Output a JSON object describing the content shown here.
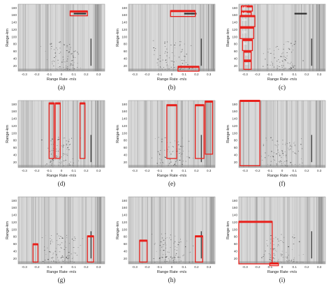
{
  "figure": {
    "x_axis_title": "Range Rate -m/s",
    "y_axis_title": "Range-km",
    "x_ticks": [
      "-0.3",
      "-0.2",
      "-0.1",
      "0",
      "0.1",
      "0.2",
      "0.3"
    ],
    "y_ticks": [
      "20",
      "40",
      "60",
      "80",
      "100",
      "120",
      "140",
      "160",
      "180"
    ],
    "x_range": [
      -0.35,
      0.35
    ],
    "y_range": [
      5,
      190
    ],
    "background_color": "#d9d9d9",
    "annotation_color": "#e8211c"
  },
  "panels": [
    {
      "id": "a",
      "label": "(a)",
      "boxes": [
        {
          "x0": 0.07,
          "x1": 0.21,
          "y0": 158,
          "y1": 171,
          "style": "outline"
        }
      ]
    },
    {
      "id": "b",
      "label": "(b)",
      "boxes": [
        {
          "x0": -0.01,
          "x1": 0.19,
          "y0": 156,
          "y1": 172,
          "style": "outline"
        },
        {
          "x0": 0.05,
          "x1": 0.22,
          "y0": 5,
          "y1": 18,
          "style": "outline"
        }
      ]
    },
    {
      "id": "c",
      "label": "(c)",
      "boxes": [
        {
          "x0": -0.33,
          "x1": -0.24,
          "y0": 171,
          "y1": 185,
          "style": "outline"
        },
        {
          "x0": -0.33,
          "x1": -0.25,
          "y0": 159,
          "y1": 170,
          "style": "outline"
        },
        {
          "x0": -0.34,
          "x1": -0.22,
          "y0": 128,
          "y1": 158,
          "style": "outline"
        },
        {
          "x0": -0.34,
          "x1": -0.23,
          "y0": 95,
          "y1": 126,
          "style": "outline"
        },
        {
          "x0": -0.32,
          "x1": -0.24,
          "y0": 62,
          "y1": 92,
          "style": "outline"
        },
        {
          "x0": -0.31,
          "x1": -0.25,
          "y0": 36,
          "y1": 60,
          "style": "outline"
        },
        {
          "x0": -0.31,
          "x1": -0.25,
          "y0": 10,
          "y1": 34,
          "style": "outline"
        }
      ],
      "tags": [
        {
          "text": "160",
          "x": -0.325,
          "y": 178
        },
        {
          "text": "140",
          "x": -0.325,
          "y": 163
        },
        {
          "text": "120",
          "x": -0.325,
          "y": 144
        },
        {
          "text": "100",
          "x": -0.325,
          "y": 110
        },
        {
          "text": "80",
          "x": -0.31,
          "y": 78
        },
        {
          "text": "60",
          "x": -0.3,
          "y": 48
        },
        {
          "text": "40",
          "x": -0.3,
          "y": 22
        }
      ]
    },
    {
      "id": "d",
      "label": "(d)",
      "boxes": [
        {
          "x0": -0.1,
          "x1": -0.06,
          "y0": 30,
          "y1": 183,
          "style": "outline"
        },
        {
          "x0": -0.05,
          "x1": -0.01,
          "y0": 30,
          "y1": 183,
          "style": "outline"
        },
        {
          "x0": 0.15,
          "x1": 0.19,
          "y0": 30,
          "y1": 183,
          "style": "outline"
        }
      ]
    },
    {
      "id": "e",
      "label": "(e)",
      "boxes": [
        {
          "x0": -0.04,
          "x1": 0.04,
          "y0": 30,
          "y1": 178,
          "style": "outline"
        },
        {
          "x0": 0.19,
          "x1": 0.26,
          "y0": 30,
          "y1": 178,
          "style": "outline"
        },
        {
          "x0": 0.27,
          "x1": 0.33,
          "y0": 42,
          "y1": 188,
          "style": "outline"
        }
      ]
    },
    {
      "id": "f",
      "label": "(f)",
      "boxes": [
        {
          "x0": -0.34,
          "x1": -0.18,
          "y0": 10,
          "y1": 190,
          "style": "outline"
        }
      ]
    },
    {
      "id": "g",
      "label": "(g)",
      "boxes": [
        {
          "x0": -0.23,
          "x1": -0.19,
          "y0": 10,
          "y1": 60,
          "style": "outline"
        },
        {
          "x0": 0.21,
          "x1": 0.26,
          "y0": 10,
          "y1": 82,
          "style": "outline"
        }
      ]
    },
    {
      "id": "h",
      "label": "(h)",
      "boxes": [
        {
          "x0": -0.26,
          "x1": -0.2,
          "y0": 10,
          "y1": 70,
          "style": "outline"
        },
        {
          "x0": 0.19,
          "x1": 0.25,
          "y0": 10,
          "y1": 82,
          "style": "outline"
        }
      ]
    },
    {
      "id": "i",
      "label": "(i)",
      "boxes": [
        {
          "x0": -0.35,
          "x1": -0.08,
          "y0": 5,
          "y1": 122,
          "style": "outline"
        },
        {
          "x0": -0.1,
          "x1": -0.03,
          "y0": 0,
          "y1": 7,
          "style": "outline"
        }
      ]
    }
  ]
}
